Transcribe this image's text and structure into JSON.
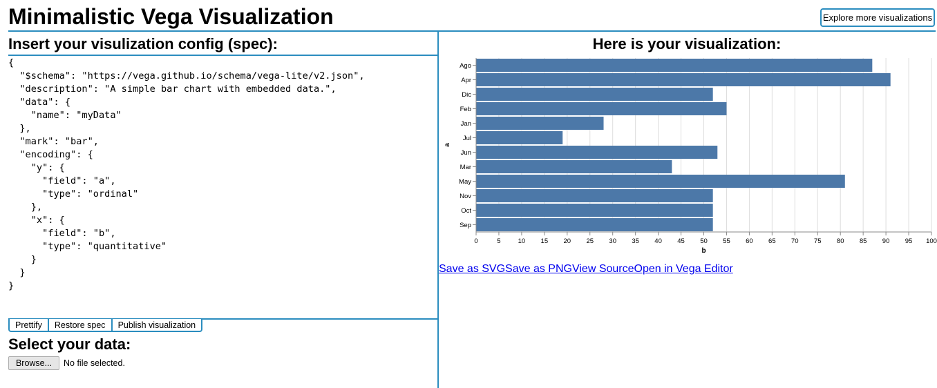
{
  "header": {
    "title": "Minimalistic Vega Visualization",
    "explore_label": "Explore more visualizations"
  },
  "colors": {
    "accent": "#2b8dbf",
    "bar": "#4c78a8",
    "link": "#0000ee"
  },
  "spec_panel": {
    "heading": "Insert your visulization config (spec):",
    "spec_text": "{\n  \"$schema\": \"https://vega.github.io/schema/vega-lite/v2.json\",\n  \"description\": \"A simple bar chart with embedded data.\",\n  \"data\": {\n    \"name\": \"myData\"\n  },\n  \"mark\": \"bar\",\n  \"encoding\": {\n    \"y\": {\n      \"field\": \"a\",\n      \"type\": \"ordinal\"\n    },\n    \"x\": {\n      \"field\": \"b\",\n      \"type\": \"quantitative\"\n    }\n  }\n}",
    "buttons": {
      "prettify": "Prettify",
      "restore": "Restore spec",
      "publish": "Publish visualization"
    }
  },
  "data_panel": {
    "heading": "Select your data:",
    "browse_label": "Browse...",
    "file_status": "No file selected."
  },
  "viz_panel": {
    "heading": "Here is your visualization:",
    "links": {
      "save_svg": "Save as SVG",
      "save_png": "Save as PNG",
      "view_source": "View Source",
      "open_editor": "Open in Vega Editor"
    }
  },
  "chart_data": {
    "type": "bar",
    "orientation": "horizontal",
    "categories": [
      "Ago",
      "Apr",
      "Dic",
      "Feb",
      "Jan",
      "Jul",
      "Jun",
      "Mar",
      "May",
      "Nov",
      "Oct",
      "Sep"
    ],
    "values": [
      87,
      91,
      52,
      55,
      28,
      19,
      53,
      43,
      81,
      52,
      52,
      52
    ],
    "xlabel": "b",
    "ylabel": "a",
    "xlim": [
      0,
      100
    ],
    "xticks": [
      0,
      5,
      10,
      15,
      20,
      25,
      30,
      35,
      40,
      45,
      50,
      55,
      60,
      65,
      70,
      75,
      80,
      85,
      90,
      95,
      100
    ],
    "grid": true
  }
}
